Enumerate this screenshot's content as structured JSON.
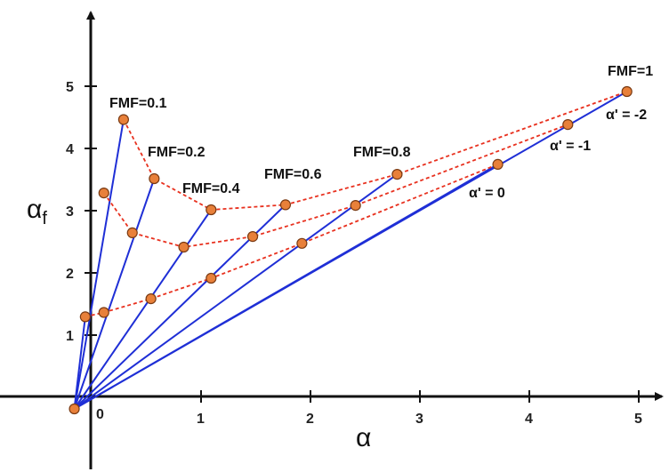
{
  "chart_data": {
    "type": "line",
    "title": "",
    "xlabel": "α",
    "ylabel": "α",
    "ylabel_subscript": "f",
    "origin_label": "0",
    "xlim": [
      -0.75,
      5.3
    ],
    "ylim": [
      -1.3,
      6.3
    ],
    "x_ticks": [
      "1",
      "2",
      "3",
      "4",
      "5"
    ],
    "y_ticks": [
      "1",
      "2",
      "3",
      "4",
      "5"
    ],
    "grid": false,
    "colors": {
      "fmf_lines": "#1f2fd6",
      "alpha_prime_curves": "#e8311f",
      "marker_fill": "#e8803a",
      "marker_edge": "#7a3a12",
      "axes": "#111111"
    },
    "origin_point": {
      "x": -0.15,
      "y": -0.2
    },
    "fmf_lines": [
      {
        "name": "FMF=0.1",
        "end": {
          "x": 0.3,
          "y": 4.45
        }
      },
      {
        "name": "FMF=0.2",
        "end": {
          "x": 0.58,
          "y": 3.5
        }
      },
      {
        "name": "FMF=0.4",
        "end": {
          "x": 1.1,
          "y": 3.0
        }
      },
      {
        "name": "FMF=0.6",
        "end": {
          "x": 1.78,
          "y": 3.08
        }
      },
      {
        "name": "FMF=0.8",
        "end": {
          "x": 2.8,
          "y": 3.57
        }
      },
      {
        "name": "FMF=1",
        "end": {
          "x": 4.9,
          "y": 4.9
        }
      }
    ],
    "alpha_prime_curves": [
      {
        "name": "α' = -2",
        "points": [
          {
            "x": 0.3,
            "y": 4.45
          },
          {
            "x": 0.58,
            "y": 3.5
          },
          {
            "x": 1.1,
            "y": 3.0
          },
          {
            "x": 1.78,
            "y": 3.08
          },
          {
            "x": 2.8,
            "y": 3.57
          },
          {
            "x": 4.9,
            "y": 4.9
          }
        ]
      },
      {
        "name": "α' = -1",
        "points": [
          {
            "x": 0.12,
            "y": 3.27
          },
          {
            "x": 0.38,
            "y": 2.63
          },
          {
            "x": 0.85,
            "y": 2.4
          },
          {
            "x": 1.48,
            "y": 2.57
          },
          {
            "x": 2.42,
            "y": 3.07
          },
          {
            "x": 4.36,
            "y": 4.37
          }
        ]
      },
      {
        "name": "α' = 0",
        "points": [
          {
            "x": -0.05,
            "y": 1.28
          },
          {
            "x": 0.12,
            "y": 1.35
          },
          {
            "x": 0.55,
            "y": 1.57
          },
          {
            "x": 1.1,
            "y": 1.9
          },
          {
            "x": 1.93,
            "y": 2.46
          },
          {
            "x": 3.72,
            "y": 3.73
          }
        ]
      }
    ]
  }
}
